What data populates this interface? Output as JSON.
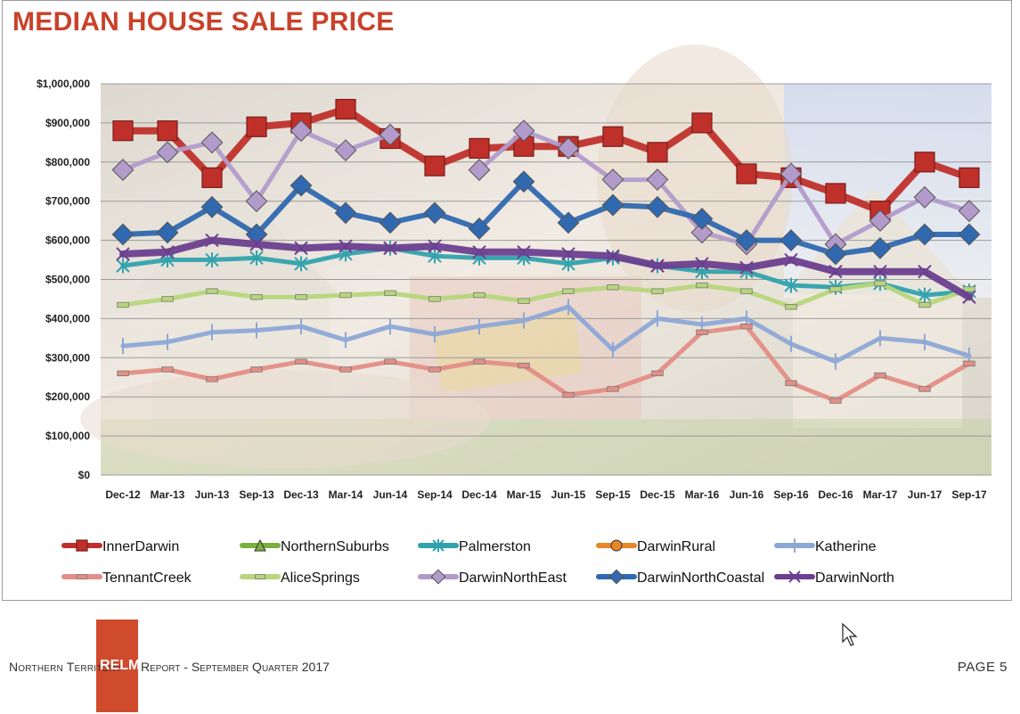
{
  "title": "MEDIAN HOUSE SALE PRICE",
  "footer": {
    "left_before": "Northern Territory",
    "brand": "RELM",
    "left_after": "Report - September Quarter 2017",
    "page": "PAGE 5"
  },
  "chart_data": {
    "type": "line",
    "categories": [
      "Dec-12",
      "Mar-13",
      "Jun-13",
      "Sep-13",
      "Dec-13",
      "Mar-14",
      "Jun-14",
      "Sep-14",
      "Dec-14",
      "Mar-15",
      "Jun-15",
      "Sep-15",
      "Dec-15",
      "Mar-16",
      "Jun-16",
      "Sep-16",
      "Dec-16",
      "Mar-17",
      "Jun-17",
      "Sep-17"
    ],
    "ylim": [
      0,
      1000000
    ],
    "yticks": [
      "$0",
      "$100,000",
      "$200,000",
      "$300,000",
      "$400,000",
      "$500,000",
      "$600,000",
      "$700,000",
      "$800,000",
      "$900,000",
      "$1,000,000"
    ],
    "grid": true,
    "legend_position": "bottom",
    "series": [
      {
        "name": "InnerDarwin",
        "color": "#c0302b",
        "marker": "square",
        "values": [
          880000,
          880000,
          760000,
          890000,
          900000,
          935000,
          860000,
          790000,
          835000,
          840000,
          840000,
          865000,
          825000,
          900000,
          770000,
          760000,
          720000,
          675000,
          800000,
          760000
        ]
      },
      {
        "name": "NorthernSuburbs",
        "color": "#7ab03f",
        "marker": "triangle",
        "values": [
          null,
          null,
          null,
          null,
          null,
          null,
          null,
          null,
          null,
          null,
          null,
          null,
          null,
          null,
          null,
          null,
          null,
          null,
          null,
          null
        ]
      },
      {
        "name": "Palmerston",
        "color": "#31a2ad",
        "marker": "star",
        "values": [
          535000,
          550000,
          550000,
          555000,
          540000,
          565000,
          580000,
          560000,
          555000,
          555000,
          540000,
          555000,
          535000,
          520000,
          520000,
          485000,
          480000,
          490000,
          460000,
          470000
        ]
      },
      {
        "name": "DarwinRural",
        "color": "#e8862a",
        "marker": "circle",
        "values": [
          null,
          null,
          null,
          null,
          null,
          null,
          null,
          null,
          null,
          null,
          null,
          null,
          null,
          null,
          null,
          null,
          null,
          null,
          null,
          null
        ]
      },
      {
        "name": "Katherine",
        "color": "#8ea8d6",
        "marker": "plus",
        "values": [
          330000,
          340000,
          365000,
          370000,
          380000,
          345000,
          380000,
          360000,
          380000,
          395000,
          430000,
          320000,
          400000,
          385000,
          400000,
          335000,
          290000,
          350000,
          340000,
          305000
        ]
      },
      {
        "name": "TennantCreek",
        "color": "#e38e86",
        "marker": "dash",
        "values": [
          260000,
          270000,
          245000,
          270000,
          290000,
          270000,
          290000,
          270000,
          290000,
          280000,
          205000,
          220000,
          260000,
          365000,
          380000,
          235000,
          190000,
          255000,
          220000,
          285000
        ]
      },
      {
        "name": "AliceSprings",
        "color": "#b7d67b",
        "marker": "dash",
        "values": [
          435000,
          450000,
          470000,
          455000,
          455000,
          460000,
          465000,
          450000,
          460000,
          445000,
          470000,
          480000,
          470000,
          485000,
          470000,
          430000,
          475000,
          490000,
          435000,
          475000
        ]
      },
      {
        "name": "DarwinNorthEast",
        "color": "#b29bcb",
        "marker": "diamond",
        "values": [
          780000,
          825000,
          850000,
          700000,
          880000,
          830000,
          870000,
          null,
          780000,
          880000,
          835000,
          755000,
          755000,
          620000,
          590000,
          770000,
          590000,
          650000,
          710000,
          675000
        ]
      },
      {
        "name": "DarwinNorthCoastal",
        "color": "#3069b0",
        "marker": "diamond",
        "values": [
          615000,
          620000,
          685000,
          615000,
          740000,
          670000,
          645000,
          670000,
          630000,
          750000,
          645000,
          690000,
          685000,
          655000,
          600000,
          600000,
          565000,
          580000,
          615000,
          615000
        ]
      },
      {
        "name": "DarwinNorth",
        "color": "#6b3f8f",
        "marker": "x",
        "values": [
          565000,
          570000,
          600000,
          590000,
          580000,
          585000,
          580000,
          585000,
          570000,
          570000,
          565000,
          560000,
          535000,
          540000,
          530000,
          550000,
          520000,
          520000,
          520000,
          455000
        ]
      }
    ]
  }
}
